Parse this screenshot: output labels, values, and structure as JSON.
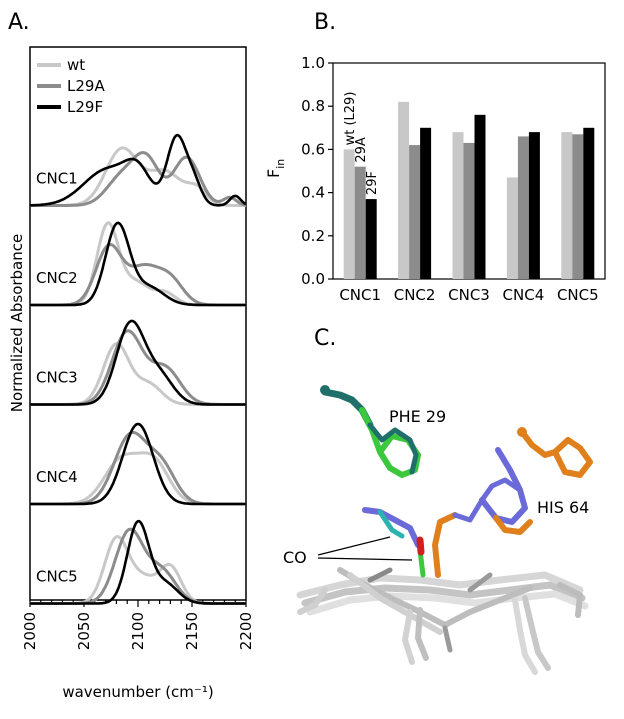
{
  "figure": {
    "panel_labels": [
      "A.",
      "B.",
      "C."
    ]
  },
  "colors": {
    "wt": "#c8c8c8",
    "L29A": "#8c8c8c",
    "L29F": "#000000",
    "phe_green": "#3cc83c",
    "phe_teal": "#1f6f6a",
    "his_orange": "#e0801c",
    "his_blue": "#6a6ad8",
    "heme_gray": "#cfcfcf",
    "co_red": "#d02020",
    "co_teal": "#2ab3b0"
  },
  "chart_data": [
    {
      "type": "line",
      "panel": "A.",
      "xlabel": "wavenumber (cm⁻¹)",
      "ylabel": "Normalized Absorbance",
      "xlim": [
        2000,
        2200
      ],
      "xticks": [
        "2000",
        "2050",
        "2100",
        "2150",
        "2200"
      ],
      "legend": [
        "wt",
        "L29A",
        "L29F"
      ],
      "legend_position": "top-left",
      "panels": [
        {
          "label": "CNC1",
          "series": [
            {
              "name": "wt",
              "peaks": [
                [
                  2085,
                  0.7,
                  15
                ],
                [
                  2125,
                  0.42,
                  16
                ],
                [
                  2155,
                  0.18,
                  9
                ]
              ]
            },
            {
              "name": "L29A",
              "peaks": [
                [
                  2085,
                  0.35,
                  14
                ],
                [
                  2108,
                  0.55,
                  12
                ],
                [
                  2145,
                  0.6,
                  12
                ],
                [
                  2185,
                  0.1,
                  6
                ]
              ]
            },
            {
              "name": "L29F",
              "peaks": [
                [
                  2072,
                  0.45,
                  22
                ],
                [
                  2100,
                  0.35,
                  12
                ],
                [
                  2136,
                  0.85,
                  9
                ],
                [
                  2152,
                  0.25,
                  7
                ],
                [
                  2190,
                  0.12,
                  5
                ]
              ]
            }
          ]
        },
        {
          "label": "CNC2",
          "series": [
            {
              "name": "wt",
              "peaks": [
                [
                  2072,
                  1.0,
                  10
                ],
                [
                  2098,
                  0.28,
                  12
                ],
                [
                  2125,
                  0.15,
                  10
                ]
              ]
            },
            {
              "name": "L29A",
              "peaks": [
                [
                  2073,
                  0.72,
                  12
                ],
                [
                  2105,
                  0.45,
                  14
                ],
                [
                  2130,
                  0.3,
                  12
                ]
              ]
            },
            {
              "name": "L29F",
              "peaks": [
                [
                  2081,
                  1.0,
                  11
                ],
                [
                  2110,
                  0.22,
                  14
                ]
              ]
            }
          ]
        },
        {
          "label": "CNC3",
          "series": [
            {
              "name": "wt",
              "peaks": [
                [
                  2080,
                  0.75,
                  12
                ],
                [
                  2110,
                  0.25,
                  12
                ]
              ]
            },
            {
              "name": "L29A",
              "peaks": [
                [
                  2090,
                  0.9,
                  14
                ],
                [
                  2125,
                  0.45,
                  14
                ]
              ]
            },
            {
              "name": "L29F",
              "peaks": [
                [
                  2093,
                  1.0,
                  13
                ],
                [
                  2120,
                  0.35,
                  13
                ]
              ]
            }
          ]
        },
        {
          "label": "CNC4",
          "series": [
            {
              "name": "wt",
              "peaks": [
                [
                  2085,
                  0.55,
                  16
                ],
                [
                  2115,
                  0.5,
                  14
                ]
              ]
            },
            {
              "name": "L29A",
              "peaks": [
                [
                  2093,
                  0.85,
                  15
                ],
                [
                  2122,
                  0.45,
                  13
                ]
              ]
            },
            {
              "name": "L29F",
              "peaks": [
                [
                  2100,
                  1.0,
                  14
                ]
              ]
            }
          ]
        },
        {
          "label": "CNC5",
          "series": [
            {
              "name": "wt",
              "peaks": [
                [
                  2080,
                  0.8,
                  11
                ],
                [
                  2105,
                  0.3,
                  12
                ],
                [
                  2130,
                  0.45,
                  10
                ]
              ]
            },
            {
              "name": "L29A",
              "peaks": [
                [
                  2092,
                  0.9,
                  13
                ],
                [
                  2122,
                  0.4,
                  13
                ]
              ]
            },
            {
              "name": "L29F",
              "peaks": [
                [
                  2100,
                  1.0,
                  10
                ],
                [
                  2125,
                  0.25,
                  12
                ]
              ]
            }
          ]
        }
      ]
    },
    {
      "type": "bar",
      "panel": "B.",
      "ylabel": "F",
      "ylabel_subscript": "in",
      "ylim": [
        0,
        1.0
      ],
      "yticks": [
        "0.0",
        "0.2",
        "0.4",
        "0.6",
        "0.8",
        "1.0"
      ],
      "categories": [
        "CNC1",
        "CNC2",
        "CNC3",
        "CNC4",
        "CNC5"
      ],
      "series": [
        {
          "name": "wt",
          "label": "wt (L29)",
          "values": [
            0.6,
            0.82,
            0.68,
            0.47,
            0.68
          ]
        },
        {
          "name": "L29A",
          "label": "29A",
          "values": [
            0.52,
            0.62,
            0.63,
            0.66,
            0.67
          ]
        },
        {
          "name": "L29F",
          "label": "29F",
          "values": [
            0.37,
            0.7,
            0.76,
            0.68,
            0.7
          ]
        }
      ]
    }
  ],
  "structure": {
    "phe_label": "PHE 29",
    "his_label": "HIS 64",
    "co_label": "CO"
  }
}
